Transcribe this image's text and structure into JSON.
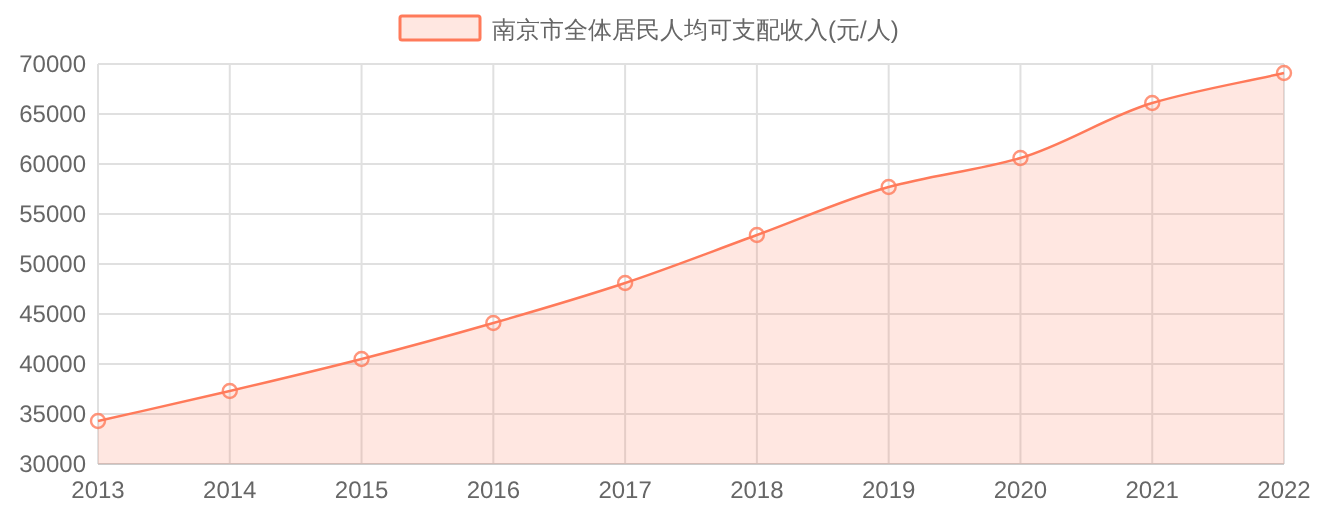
{
  "chart_data": {
    "type": "area",
    "categories": [
      "2013",
      "2014",
      "2015",
      "2016",
      "2017",
      "2018",
      "2019",
      "2020",
      "2021",
      "2022"
    ],
    "series": [
      {
        "name": "南京市全体居民人均可支配收入(元/人)",
        "color": "#ff7a5a",
        "values": [
          34300,
          37300,
          40500,
          44100,
          48100,
          52900,
          57700,
          60600,
          66100,
          69100
        ]
      }
    ],
    "ylim": [
      30000,
      70000
    ],
    "yticks": [
      30000,
      35000,
      40000,
      45000,
      50000,
      55000,
      60000,
      65000,
      70000
    ],
    "grid": true,
    "legend": "top",
    "marker": "circle"
  }
}
